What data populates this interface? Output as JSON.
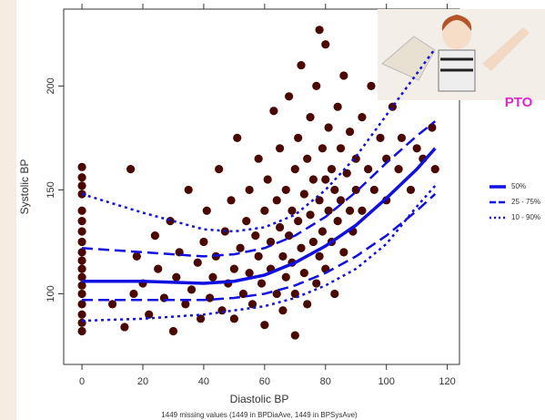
{
  "chart_data": {
    "type": "scatter",
    "x_label": "Diastolic BP",
    "y_label": "Systolic BP",
    "footnote": "1449 missing values (1449 in BPDiaAve, 1449 in BPSysAve)",
    "annotation": "PTO",
    "color": "#4a0800",
    "xlim": [
      -6,
      124
    ],
    "ylim": [
      66,
      237
    ],
    "xticks": [
      0,
      20,
      40,
      60,
      80,
      100,
      120
    ],
    "yticks": [
      100,
      150,
      200
    ],
    "x": [
      0,
      0,
      0,
      0,
      0,
      0,
      0,
      0,
      0,
      0,
      0,
      0,
      0,
      0,
      0,
      0,
      0,
      0,
      10,
      14,
      16,
      17,
      18,
      20,
      22,
      24,
      25,
      27,
      29,
      30,
      31,
      32,
      34,
      35,
      36,
      38,
      39,
      40,
      41,
      42,
      43,
      44,
      45,
      46,
      47,
      48,
      49,
      50,
      50,
      51,
      52,
      53,
      54,
      55,
      55,
      56,
      57,
      58,
      58,
      59,
      60,
      60,
      61,
      62,
      62,
      63,
      64,
      64,
      65,
      65,
      66,
      66,
      67,
      67,
      68,
      68,
      69,
      69,
      70,
      70,
      70,
      71,
      71,
      72,
      72,
      73,
      73,
      74,
      74,
      75,
      75,
      76,
      76,
      77,
      77,
      78,
      78,
      78,
      79,
      79,
      80,
      80,
      80,
      81,
      81,
      82,
      82,
      83,
      83,
      84,
      84,
      85,
      85,
      86,
      86,
      87,
      88,
      88,
      89,
      90,
      90,
      92,
      92,
      94,
      95,
      96,
      98,
      100,
      100,
      102,
      104,
      105,
      108,
      110,
      112,
      115,
      116
    ],
    "values": [
      82,
      86,
      90,
      95,
      100,
      104,
      108,
      112,
      116,
      120,
      125,
      130,
      135,
      140,
      148,
      152,
      156,
      161,
      95,
      84,
      160,
      100,
      118,
      105,
      90,
      128,
      112,
      98,
      135,
      82,
      108,
      120,
      95,
      150,
      102,
      115,
      88,
      125,
      140,
      98,
      108,
      118,
      160,
      92,
      130,
      105,
      145,
      112,
      88,
      175,
      122,
      100,
      135,
      150,
      110,
      95,
      128,
      165,
      118,
      105,
      140,
      85,
      155,
      125,
      112,
      188,
      100,
      145,
      132,
      170,
      118,
      92,
      150,
      108,
      195,
      128,
      140,
      115,
      160,
      100,
      80,
      135,
      175,
      122,
      210,
      148,
      110,
      165,
      95,
      138,
      185,
      125,
      155,
      105,
      200,
      145,
      118,
      227,
      170,
      130,
      155,
      112,
      220,
      140,
      180,
      125,
      160,
      150,
      100,
      190,
      135,
      145,
      170,
      120,
      205,
      158,
      140,
      178,
      130,
      165,
      150,
      185,
      140,
      160,
      200,
      150,
      175,
      165,
      145,
      190,
      160,
      175,
      150,
      170,
      165,
      180,
      160
    ],
    "lines": [
      {
        "name": "50%",
        "style": "solid",
        "color": "#1010e0",
        "x": [
          0,
          20,
          40,
          50,
          60,
          70,
          80,
          90,
          100,
          110,
          116
        ],
        "values": [
          106,
          106,
          105,
          106,
          109,
          115,
          123,
          133,
          146,
          160,
          170
        ]
      },
      {
        "name": "25 - 75%",
        "style": "dashed",
        "color": "#1010e0",
        "x": [
          0,
          20,
          40,
          50,
          60,
          70,
          80,
          90,
          100,
          110,
          116
        ],
        "lower": [
          97,
          97,
          97,
          98,
          100,
          104,
          110,
          118,
          128,
          140,
          148
        ],
        "upper": [
          122,
          120,
          118,
          119,
          122,
          128,
          137,
          149,
          163,
          176,
          183
        ]
      },
      {
        "name": "10 - 90%",
        "style": "dotted",
        "color": "#1010e0",
        "x": [
          0,
          20,
          40,
          50,
          60,
          70,
          80,
          90,
          100,
          110,
          116
        ],
        "lower": [
          87,
          88,
          90,
          92,
          94,
          98,
          104,
          112,
          124,
          142,
          152
        ],
        "upper": [
          148,
          139,
          131,
          130,
          132,
          138,
          150,
          166,
          186,
          206,
          218
        ]
      }
    ]
  }
}
